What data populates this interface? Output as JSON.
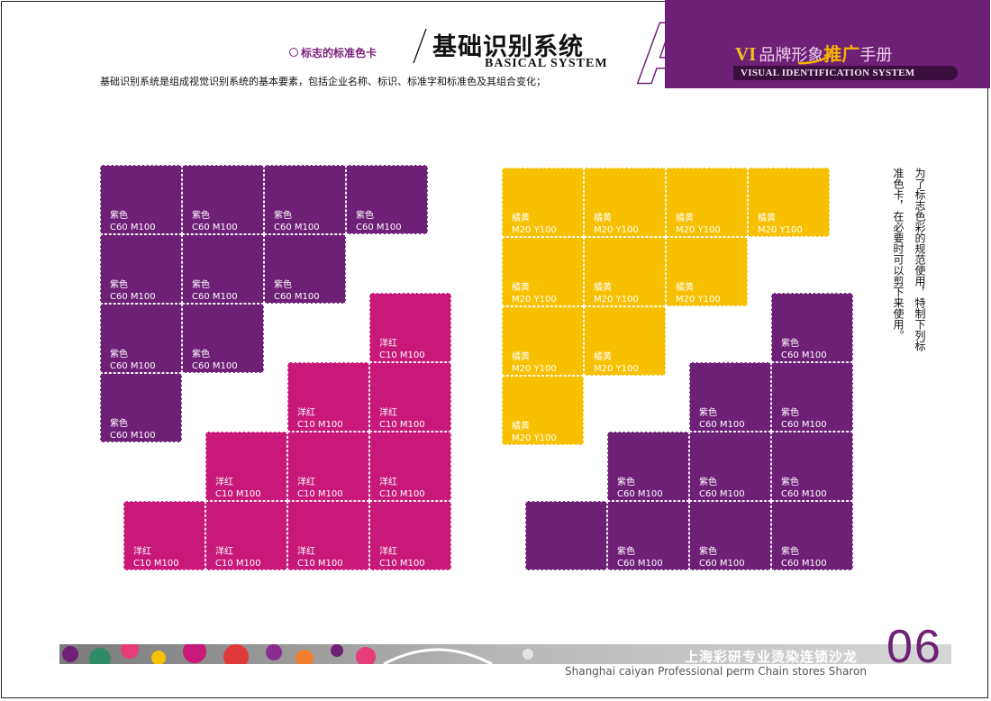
{
  "header": {
    "section_label": "标志的标准色卡",
    "title_cn": "基础识别系统",
    "title_en": "BASICAL SYSTEM",
    "letter": "A",
    "intro": "基础识别系统是组成视觉识别系统的基本要素，包括企业名称、标识、标准字和标准色及其组合变化；"
  },
  "brand": {
    "vi": "VI",
    "part1": "品牌形象",
    "promo": "推广",
    "part2": "手册",
    "bar_text": "VISUAL  IDENTIFICATION SYSTEM"
  },
  "colors": {
    "purple": "#6e1f76",
    "magenta": "#c8197a",
    "orange_yellow": "#f7c000",
    "brand_panel": "#6d2075"
  },
  "swatch_labels": {
    "purple": {
      "name": "紫色",
      "code": "C60  M100"
    },
    "magenta": {
      "name": "洋红",
      "code": "C10  M100"
    },
    "yellow": {
      "name": "橘黄",
      "code": "M20  Y100"
    }
  },
  "note": {
    "line1": "为了标志色彩的规范使用，特制下列标",
    "line2": "准色卡，在必要时可以剪下来使用。"
  },
  "footer": {
    "company_cn": "上海彩研专业烫染连锁沙龙",
    "company_en": "Shanghai caiyan Professional perm Chain stores Sharon",
    "page_number": "06"
  }
}
